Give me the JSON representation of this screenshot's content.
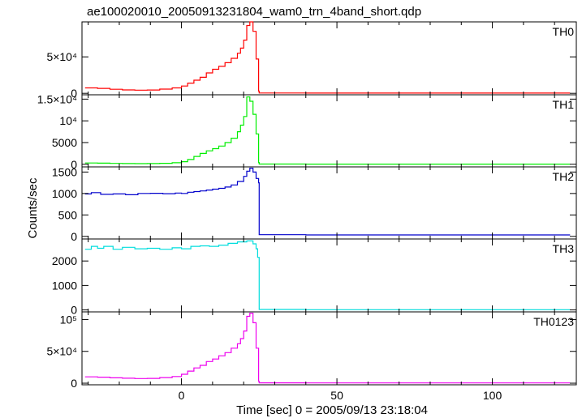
{
  "chart_data": {
    "type": "line",
    "style": "step",
    "title": "ae100020010_20050913231804_wam0_trn_4band_short.qdp",
    "xlabel": "Time [sec] 0 = 2005/09/13 23:18:04",
    "ylabel": "Counts/sec",
    "xlim": [
      -32,
      127
    ],
    "x_ticks": [
      {
        "value": 0,
        "label": "0"
      },
      {
        "value": 50,
        "label": "50"
      },
      {
        "value": 100,
        "label": "100"
      }
    ],
    "x_minor_step": 10,
    "grid": false,
    "panels": [
      {
        "name": "TH0",
        "color": "#ff0000",
        "ylim": [
          -2000,
          98000
        ],
        "y_ticks": [
          {
            "value": 0,
            "label": "0"
          },
          {
            "value": 50000,
            "label": "5×10⁴"
          }
        ],
        "points": [
          [
            -31,
            7500
          ],
          [
            -27,
            6800
          ],
          [
            -23,
            5600
          ],
          [
            -19,
            4700
          ],
          [
            -15,
            4300
          ],
          [
            -11,
            4600
          ],
          [
            -7,
            5800
          ],
          [
            -3,
            7500
          ],
          [
            0,
            10000
          ],
          [
            2,
            14000
          ],
          [
            4,
            18000
          ],
          [
            6,
            22000
          ],
          [
            8,
            28000
          ],
          [
            10,
            33000
          ],
          [
            12,
            37000
          ],
          [
            14,
            42000
          ],
          [
            16,
            48000
          ],
          [
            18,
            55000
          ],
          [
            19,
            62000
          ],
          [
            20,
            73000
          ],
          [
            21,
            93000
          ],
          [
            22,
            98000
          ],
          [
            23,
            85000
          ],
          [
            24,
            47000
          ],
          [
            24.8,
            3000
          ],
          [
            25,
            500
          ],
          [
            40,
            300
          ],
          [
            60,
            300
          ],
          [
            80,
            300
          ],
          [
            100,
            300
          ],
          [
            120,
            300
          ],
          [
            125,
            300
          ]
        ]
      },
      {
        "name": "TH1",
        "color": "#00ee00",
        "ylim": [
          -600,
          16000
        ],
        "y_ticks": [
          {
            "value": 0,
            "label": "0"
          },
          {
            "value": 5000,
            "label": "5000"
          },
          {
            "value": 10000,
            "label": "10⁴"
          },
          {
            "value": 15000,
            "label": "1.5×10⁴"
          }
        ],
        "points": [
          [
            -31,
            300
          ],
          [
            -27,
            250
          ],
          [
            -23,
            200
          ],
          [
            -19,
            160
          ],
          [
            -15,
            150
          ],
          [
            -11,
            170
          ],
          [
            -7,
            230
          ],
          [
            -3,
            350
          ],
          [
            0,
            600
          ],
          [
            2,
            1100
          ],
          [
            4,
            1800
          ],
          [
            6,
            2500
          ],
          [
            8,
            3100
          ],
          [
            10,
            3600
          ],
          [
            12,
            4200
          ],
          [
            14,
            5000
          ],
          [
            16,
            6000
          ],
          [
            18,
            7500
          ],
          [
            19,
            9000
          ],
          [
            20,
            11000
          ],
          [
            21,
            15500
          ],
          [
            22,
            14500
          ],
          [
            23,
            11500
          ],
          [
            24,
            7000
          ],
          [
            24.8,
            400
          ],
          [
            25,
            50
          ],
          [
            40,
            30
          ],
          [
            60,
            30
          ],
          [
            80,
            30
          ],
          [
            100,
            30
          ],
          [
            120,
            30
          ],
          [
            125,
            30
          ]
        ]
      },
      {
        "name": "TH2",
        "color": "#0000cc",
        "ylim": [
          -60,
          1620
        ],
        "y_ticks": [
          {
            "value": 0,
            "label": "0"
          },
          {
            "value": 500,
            "label": "500"
          },
          {
            "value": 1000,
            "label": "1000"
          },
          {
            "value": 1500,
            "label": "1500"
          }
        ],
        "points": [
          [
            -31,
            990
          ],
          [
            -29,
            1020
          ],
          [
            -26,
            980
          ],
          [
            -22,
            990
          ],
          [
            -18,
            970
          ],
          [
            -14,
            1000
          ],
          [
            -10,
            1005
          ],
          [
            -6,
            995
          ],
          [
            -2,
            1010
          ],
          [
            0,
            1000
          ],
          [
            2,
            1030
          ],
          [
            4,
            1045
          ],
          [
            6,
            1060
          ],
          [
            8,
            1080
          ],
          [
            10,
            1100
          ],
          [
            12,
            1120
          ],
          [
            14,
            1150
          ],
          [
            16,
            1200
          ],
          [
            18,
            1280
          ],
          [
            20,
            1400
          ],
          [
            21,
            1520
          ],
          [
            22,
            1590
          ],
          [
            23,
            1500
          ],
          [
            24,
            1350
          ],
          [
            24.8,
            1250
          ],
          [
            25,
            40
          ],
          [
            40,
            35
          ],
          [
            60,
            35
          ],
          [
            80,
            35
          ],
          [
            100,
            35
          ],
          [
            120,
            35
          ],
          [
            125,
            35
          ]
        ]
      },
      {
        "name": "TH3",
        "color": "#00dddd",
        "ylim": [
          -80,
          2900
        ],
        "y_ticks": [
          {
            "value": 0,
            "label": "0"
          },
          {
            "value": 1000,
            "label": "1000"
          },
          {
            "value": 2000,
            "label": "2000"
          }
        ],
        "points": [
          [
            -31,
            2480
          ],
          [
            -29,
            2600
          ],
          [
            -27,
            2520
          ],
          [
            -25,
            2600
          ],
          [
            -22,
            2480
          ],
          [
            -19,
            2560
          ],
          [
            -15,
            2500
          ],
          [
            -11,
            2520
          ],
          [
            -7,
            2480
          ],
          [
            -3,
            2540
          ],
          [
            0,
            2500
          ],
          [
            3,
            2600
          ],
          [
            6,
            2620
          ],
          [
            9,
            2600
          ],
          [
            12,
            2650
          ],
          [
            15,
            2720
          ],
          [
            18,
            2780
          ],
          [
            21,
            2820
          ],
          [
            23,
            2700
          ],
          [
            24,
            2500
          ],
          [
            24.5,
            2150
          ],
          [
            25,
            20
          ],
          [
            40,
            10
          ],
          [
            60,
            10
          ],
          [
            80,
            10
          ],
          [
            100,
            10
          ],
          [
            120,
            10
          ],
          [
            125,
            10
          ]
        ]
      },
      {
        "name": "TH0123",
        "color": "#ee00ee",
        "ylim": [
          -2500,
          112000
        ],
        "y_ticks": [
          {
            "value": 0,
            "label": "0"
          },
          {
            "value": 50000,
            "label": "5×10⁴"
          },
          {
            "value": 100000,
            "label": "10⁵"
          }
        ],
        "points": [
          [
            -31,
            10000
          ],
          [
            -27,
            9500
          ],
          [
            -23,
            8500
          ],
          [
            -19,
            7800
          ],
          [
            -15,
            7300
          ],
          [
            -11,
            7600
          ],
          [
            -7,
            8800
          ],
          [
            -3,
            10500
          ],
          [
            0,
            14000
          ],
          [
            2,
            19000
          ],
          [
            4,
            24000
          ],
          [
            6,
            28000
          ],
          [
            8,
            34000
          ],
          [
            10,
            38000
          ],
          [
            12,
            43000
          ],
          [
            14,
            48000
          ],
          [
            16,
            55000
          ],
          [
            18,
            62000
          ],
          [
            19,
            70000
          ],
          [
            20,
            82000
          ],
          [
            21,
            105000
          ],
          [
            22,
            110000
          ],
          [
            23,
            95000
          ],
          [
            24,
            55000
          ],
          [
            24.8,
            3000
          ],
          [
            25,
            500
          ],
          [
            40,
            400
          ],
          [
            60,
            400
          ],
          [
            80,
            400
          ],
          [
            100,
            400
          ],
          [
            120,
            400
          ],
          [
            125,
            400
          ]
        ]
      }
    ]
  }
}
